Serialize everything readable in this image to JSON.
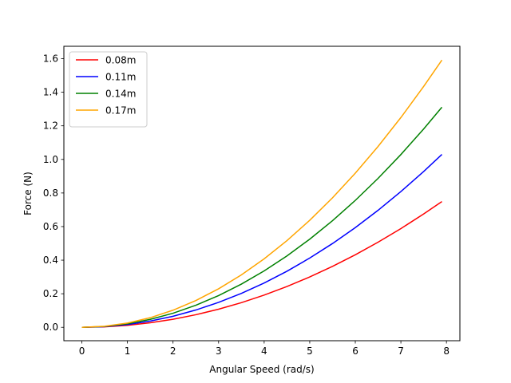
{
  "chart_data": {
    "type": "line",
    "title": "",
    "xlabel": "Angular Speed (rad/s)",
    "ylabel": "Force (N)",
    "xlim": [
      -0.395,
      8.295
    ],
    "ylim": [
      -0.0797,
      1.6737
    ],
    "x_ticks": [
      0,
      1,
      2,
      3,
      4,
      5,
      6,
      7,
      8
    ],
    "x_tick_labels": [
      "0",
      "1",
      "2",
      "3",
      "4",
      "5",
      "6",
      "7",
      "8"
    ],
    "y_ticks": [
      0.0,
      0.2,
      0.4,
      0.6,
      0.8,
      1.0,
      1.2,
      1.4,
      1.6
    ],
    "y_tick_labels": [
      "0.0",
      "0.2",
      "0.4",
      "0.6",
      "0.8",
      "1.0",
      "1.2",
      "1.4",
      "1.6"
    ],
    "grid": false,
    "legend_position": "upper-left",
    "x": [
      0,
      0.5,
      1,
      1.5,
      2,
      2.5,
      3,
      3.5,
      4,
      4.5,
      5,
      5.5,
      6,
      6.5,
      7,
      7.5,
      7.9
    ],
    "series": [
      {
        "name": "0.08m",
        "color": "#ff0000",
        "values": [
          0,
          0.003,
          0.012,
          0.027,
          0.048,
          0.075,
          0.108,
          0.147,
          0.192,
          0.243,
          0.3,
          0.363,
          0.432,
          0.507,
          0.588,
          0.675,
          0.749
        ]
      },
      {
        "name": "0.11m",
        "color": "#0000ff",
        "values": [
          0,
          0.0041,
          0.0165,
          0.0371,
          0.066,
          0.1031,
          0.1485,
          0.2021,
          0.264,
          0.3341,
          0.4125,
          0.4991,
          0.594,
          0.6971,
          0.8085,
          0.9281,
          1.0297
        ]
      },
      {
        "name": "0.14m",
        "color": "#008000",
        "values": [
          0,
          0.0053,
          0.021,
          0.0473,
          0.084,
          0.1313,
          0.189,
          0.2573,
          0.336,
          0.4253,
          0.525,
          0.6353,
          0.756,
          0.8873,
          1.029,
          1.1813,
          1.3106
        ]
      },
      {
        "name": "0.17m",
        "color": "#ffa500",
        "values": [
          0,
          0.0064,
          0.0255,
          0.0574,
          0.102,
          0.1594,
          0.2295,
          0.3124,
          0.408,
          0.5164,
          0.6375,
          0.7714,
          0.918,
          1.0774,
          1.2495,
          1.4344,
          1.5914
        ]
      }
    ]
  }
}
